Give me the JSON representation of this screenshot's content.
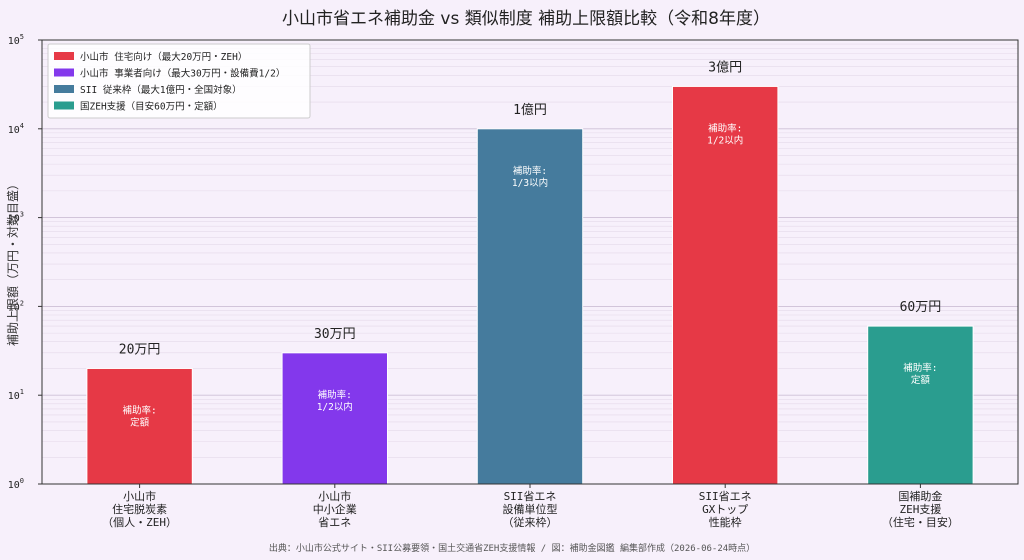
{
  "chart_data": {
    "type": "bar",
    "title": "小山市省エネ補助金 vs 類似制度 補助上限額比較（令和8年度）",
    "ylabel": "補助上限額（万円・対数目盛）",
    "xlabel": "",
    "yscale": "log",
    "ylim": [
      1,
      100000
    ],
    "y_ticks": [
      {
        "value": 1,
        "base": "10",
        "exp": "0"
      },
      {
        "value": 10,
        "base": "10",
        "exp": "1"
      },
      {
        "value": 100,
        "base": "10",
        "exp": "2"
      },
      {
        "value": 1000,
        "base": "10",
        "exp": "3"
      },
      {
        "value": 10000,
        "base": "10",
        "exp": "4"
      },
      {
        "value": 100000,
        "base": "10",
        "exp": "5"
      }
    ],
    "grid": true,
    "legend_position": "top-left",
    "bars": [
      {
        "category_lines": [
          "小山市",
          "住宅脱炭素",
          "（個人・ZEH）"
        ],
        "value": 20,
        "value_label": "20万円",
        "rate_lines": [
          "補助率:",
          "定額"
        ],
        "color": "#e63946"
      },
      {
        "category_lines": [
          "小山市",
          "中小企業",
          "省エネ"
        ],
        "value": 30,
        "value_label": "30万円",
        "rate_lines": [
          "補助率:",
          "1/2以内"
        ],
        "color": "#8338ec"
      },
      {
        "category_lines": [
          "SII省エネ",
          "設備単位型",
          "（従来枠）"
        ],
        "value": 10000,
        "value_label": "1億円",
        "rate_lines": [
          "補助率:",
          "1/3以内"
        ],
        "color": "#457b9d"
      },
      {
        "category_lines": [
          "SII省エネ",
          "GXトップ",
          "性能枠"
        ],
        "value": 30000,
        "value_label": "3億円",
        "rate_lines": [
          "補助率:",
          "1/2以内"
        ],
        "color": "#e63946"
      },
      {
        "category_lines": [
          "国補助金",
          "ZEH支援",
          "（住宅・目安）"
        ],
        "value": 60,
        "value_label": "60万円",
        "rate_lines": [
          "補助率:",
          "定額"
        ],
        "color": "#2a9d8f"
      }
    ],
    "legend": [
      {
        "label": "小山市 住宅向け（最大20万円・ZEH）",
        "color": "#e63946"
      },
      {
        "label": "小山市 事業者向け（最大30万円・設備費1/2）",
        "color": "#8338ec"
      },
      {
        "label": "SII 従来枠（最大1億円・全国対象）",
        "color": "#457b9d"
      },
      {
        "label": "国ZEH支援（目安60万円・定額）",
        "color": "#2a9d8f"
      }
    ],
    "source": "出典：小山市公式サイト・SII公募要領・国土交通省ZEH支援情報 / 図：補助金図鑑 編集部作成（2026-06-24時点）"
  }
}
